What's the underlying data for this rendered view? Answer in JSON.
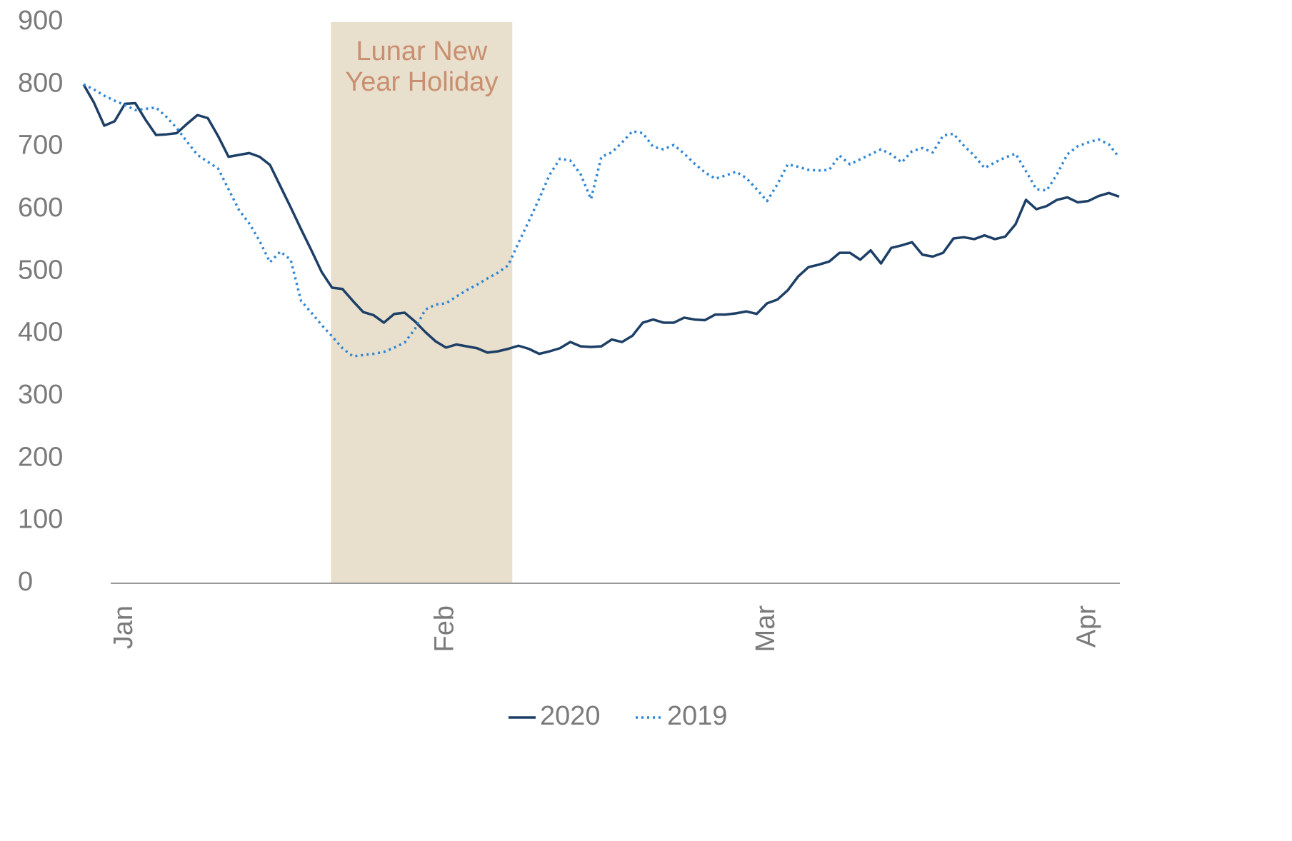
{
  "chart_data": {
    "type": "line",
    "categories": [
      null,
      null,
      null,
      null,
      "Jan",
      null,
      null,
      null,
      null,
      null,
      null,
      null,
      null,
      null,
      null,
      null,
      null,
      null,
      null,
      null,
      null,
      null,
      null,
      null,
      null,
      null,
      null,
      null,
      null,
      null,
      null,
      null,
      null,
      null,
      null,
      "Feb",
      null,
      null,
      null,
      null,
      null,
      null,
      null,
      null,
      null,
      null,
      null,
      null,
      null,
      null,
      null,
      null,
      null,
      null,
      null,
      null,
      null,
      null,
      null,
      null,
      null,
      null,
      null,
      null,
      null,
      null,
      "Mar",
      null,
      null,
      null,
      null,
      null,
      null,
      null,
      null,
      null,
      null,
      null,
      null,
      null,
      null,
      null,
      null,
      null,
      null,
      null,
      null,
      null,
      null,
      null,
      null,
      null,
      null,
      null,
      null,
      null,
      null,
      "Apr",
      null,
      null,
      null
    ],
    "series": [
      {
        "name": "2020",
        "color": "#1d3f66",
        "dash": false,
        "values": [
          800,
          771,
          734,
          741,
          769,
          770,
          743,
          719,
          720,
          722,
          737,
          751,
          746,
          717,
          684,
          687,
          690,
          684,
          671,
          637,
          603,
          568,
          534,
          499,
          474,
          472,
          453,
          435,
          430,
          418,
          432,
          434,
          420,
          403,
          388,
          378,
          383,
          380,
          377,
          370,
          372,
          376,
          381,
          376,
          368,
          372,
          377,
          387,
          380,
          379,
          380,
          391,
          387,
          397,
          418,
          423,
          418,
          418,
          426,
          423,
          422,
          431,
          431,
          433,
          436,
          432,
          449,
          455,
          470,
          492,
          507,
          511,
          516,
          530,
          530,
          519,
          534,
          513,
          538,
          542,
          547,
          527,
          524,
          530,
          553,
          555,
          552,
          558,
          552,
          556,
          576,
          615,
          600,
          605,
          615,
          619,
          611,
          613,
          621,
          626,
          620
        ]
      },
      {
        "name": "2019",
        "color": "#2e86d6",
        "dash": true,
        "values": [
          800,
          792,
          782,
          774,
          767,
          759,
          761,
          763,
          748,
          730,
          708,
          687,
          676,
          665,
          632,
          599,
          577,
          549,
          515,
          532,
          519,
          453,
          434,
          414,
          396,
          377,
          364,
          366,
          368,
          371,
          378,
          386,
          408,
          439,
          447,
          449,
          460,
          470,
          479,
          489,
          498,
          510,
          546,
          581,
          617,
          655,
          681,
          678,
          656,
          616,
          684,
          691,
          707,
          725,
          722,
          700,
          696,
          703,
          689,
          673,
          659,
          649,
          654,
          660,
          650,
          632,
          613,
          640,
          672,
          668,
          663,
          662,
          663,
          686,
          672,
          680,
          688,
          696,
          688,
          675,
          693,
          698,
          691,
          718,
          721,
          702,
          686,
          666,
          675,
          683,
          689,
          661,
          632,
          630,
          656,
          688,
          701,
          707,
          712,
          704,
          683
        ]
      }
    ],
    "ylim": [
      0,
      900
    ],
    "yticks": [
      0,
      100,
      200,
      300,
      400,
      500,
      600,
      700,
      800,
      900
    ],
    "grid": false,
    "annotation": {
      "text": [
        "Lunar New",
        "Year Holiday"
      ],
      "span": [
        23.9,
        41.4
      ],
      "color": "#e8dfcc",
      "text_color": "#c98f70"
    },
    "legend": "bottom"
  }
}
